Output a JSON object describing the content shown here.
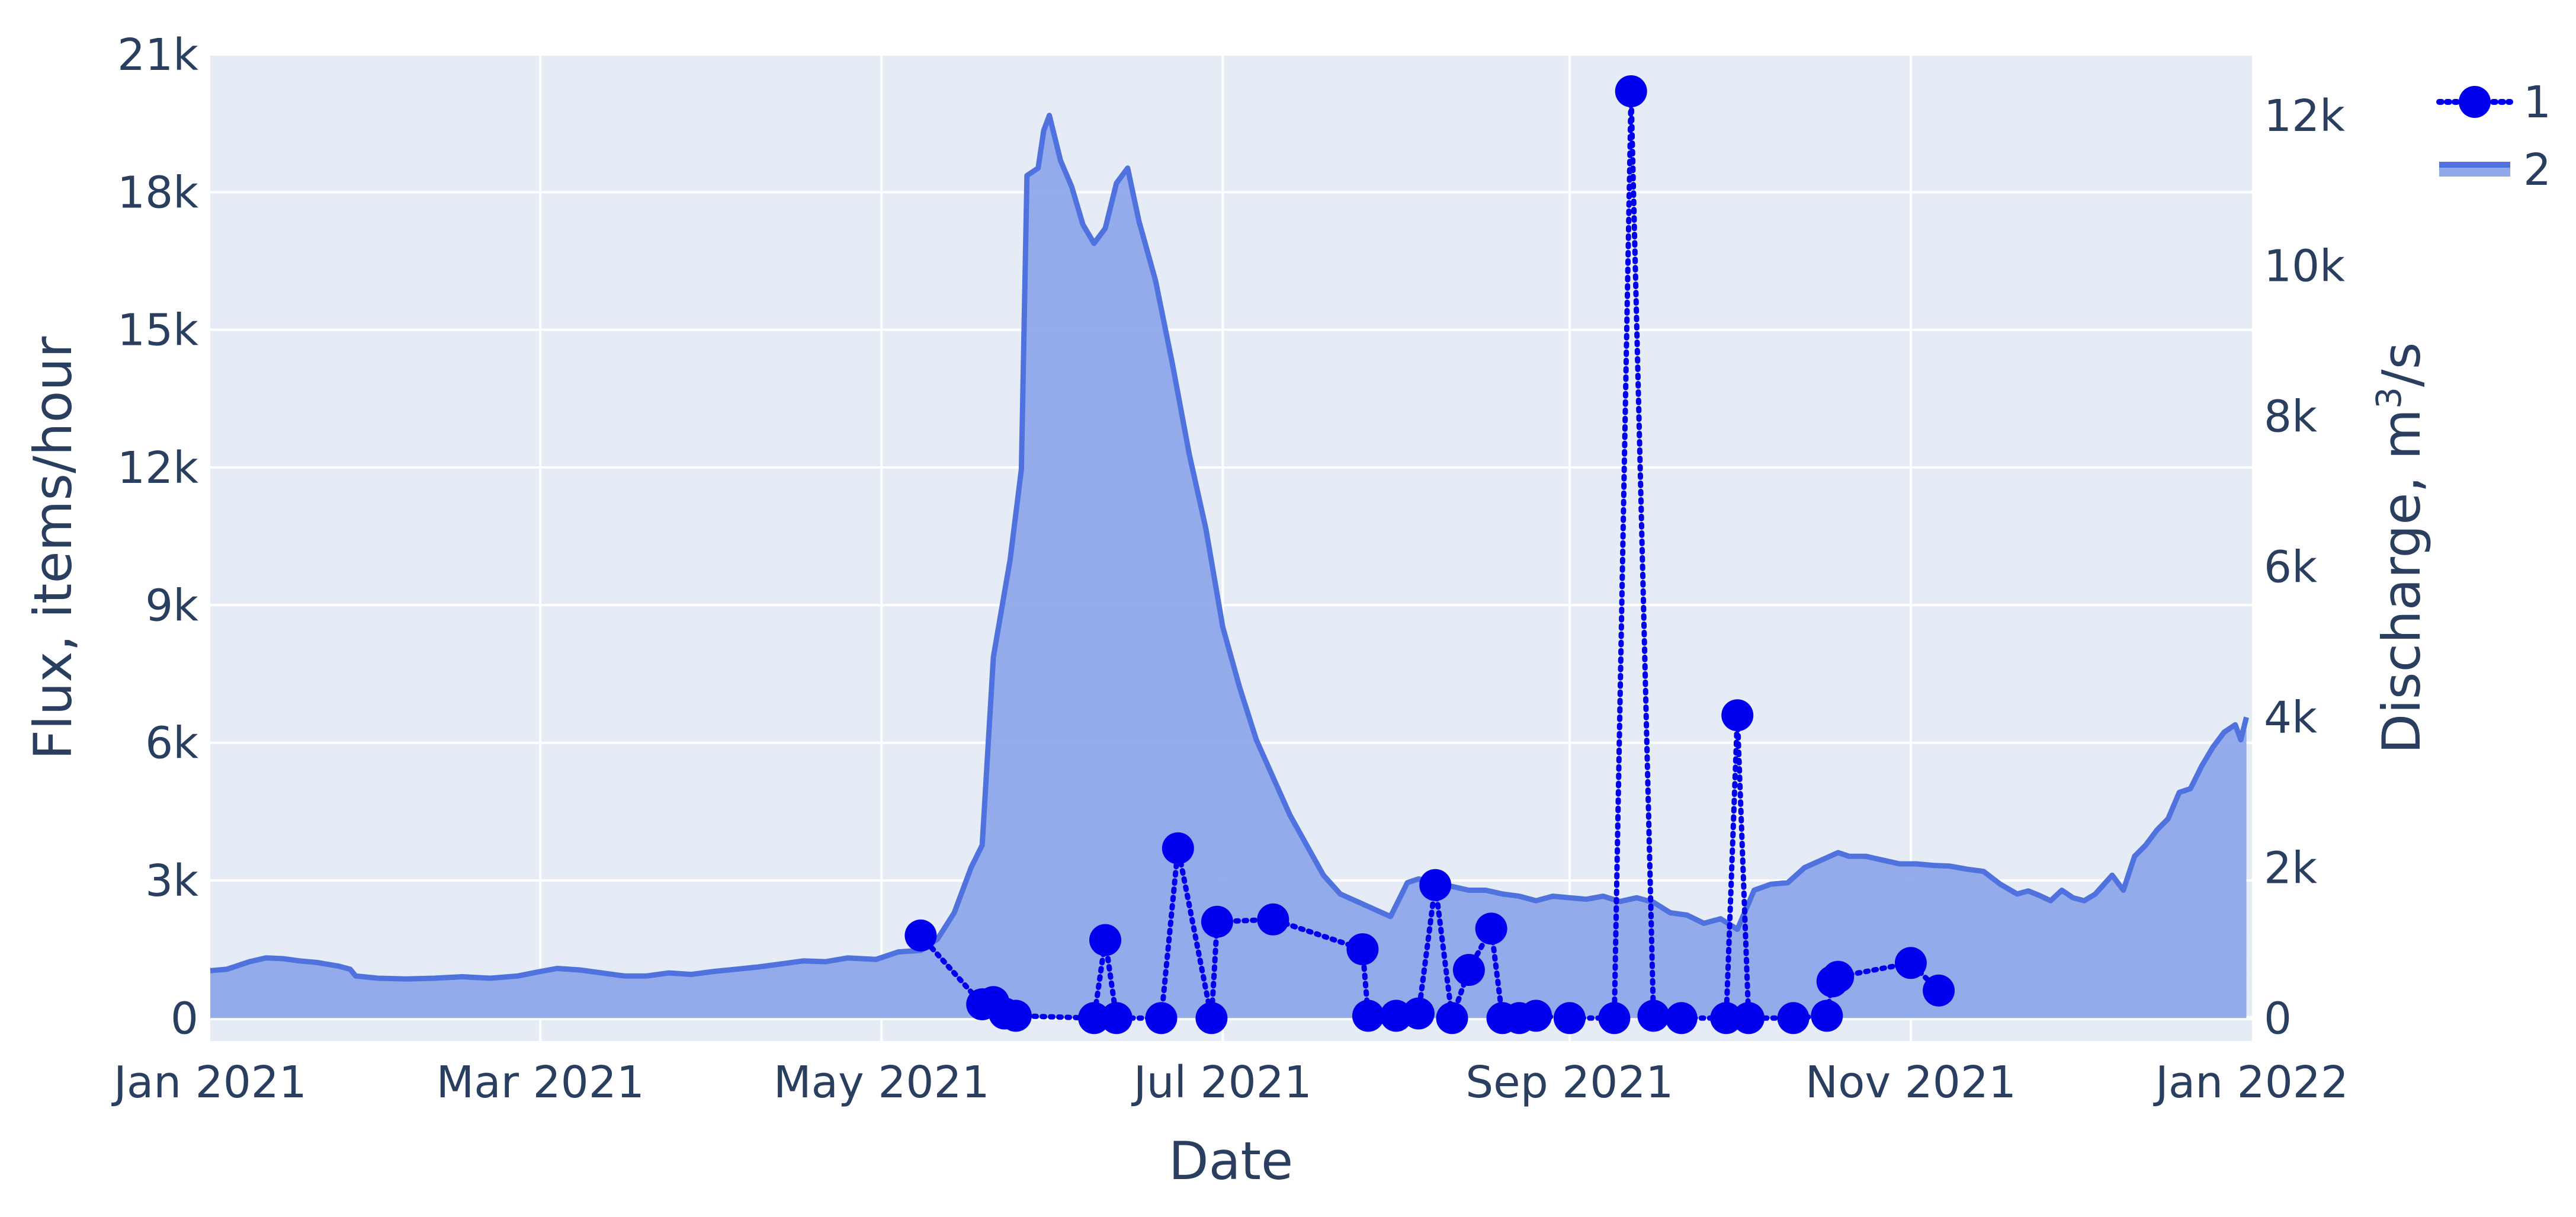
{
  "chart_data": {
    "type": "line",
    "xlabel": "Date",
    "ylabel_left": "Flux, items/hour",
    "ylabel_right_prefix": "Discharge, m",
    "ylabel_right_sup": "3",
    "ylabel_right_suffix": "/s",
    "xlim": [
      "2021-01-01",
      "2022-01-01"
    ],
    "xticks": [
      {
        "date": "2021-01-01",
        "label": "Jan 2021"
      },
      {
        "date": "2021-03-01",
        "label": "Mar 2021"
      },
      {
        "date": "2021-05-01",
        "label": "May 2021"
      },
      {
        "date": "2021-07-01",
        "label": "Jul 2021"
      },
      {
        "date": "2021-09-01",
        "label": "Sep 2021"
      },
      {
        "date": "2021-11-01",
        "label": "Nov 2021"
      },
      {
        "date": "2022-01-01",
        "label": "Jan 2022"
      }
    ],
    "ylim_left": [
      -500,
      21000
    ],
    "yticks_left": [
      {
        "value": 0,
        "label": "0"
      },
      {
        "value": 3000,
        "label": "3k"
      },
      {
        "value": 6000,
        "label": "6k"
      },
      {
        "value": 9000,
        "label": "9k"
      },
      {
        "value": 12000,
        "label": "12k"
      },
      {
        "value": 15000,
        "label": "15k"
      },
      {
        "value": 18000,
        "label": "18k"
      },
      {
        "value": 21000,
        "label": "21k"
      }
    ],
    "ylim_right": [
      -305,
      12810
    ],
    "yticks_right": [
      {
        "value": 0,
        "label": "0"
      },
      {
        "value": 2000,
        "label": "2k"
      },
      {
        "value": 4000,
        "label": "4k"
      },
      {
        "value": 6000,
        "label": "6k"
      },
      {
        "value": 8000,
        "label": "8k"
      },
      {
        "value": 10000,
        "label": "10k"
      },
      {
        "value": 12000,
        "label": "12k"
      }
    ],
    "grid": true,
    "legend_position": "top-right",
    "colors": {
      "plot_bg": "#e5ecf6",
      "grid": "#ffffff",
      "marker": "#0000ee",
      "area_line": "#4f72de",
      "area_fill": "#8fa8ea"
    },
    "series": [
      {
        "name": "1",
        "axis": "left",
        "mode": "lines+markers",
        "line_style": "dotted",
        "points": [
          [
            "2021-05-08",
            1800
          ],
          [
            "2021-05-19",
            300
          ],
          [
            "2021-05-21",
            350
          ],
          [
            "2021-05-23",
            100
          ],
          [
            "2021-05-25",
            50
          ],
          [
            "2021-06-08",
            0
          ],
          [
            "2021-06-10",
            1700
          ],
          [
            "2021-06-12",
            0
          ],
          [
            "2021-06-20",
            0
          ],
          [
            "2021-06-23",
            3700
          ],
          [
            "2021-06-29",
            0
          ],
          [
            "2021-06-30",
            2100
          ],
          [
            "2021-07-10",
            2150
          ],
          [
            "2021-07-26",
            1500
          ],
          [
            "2021-07-27",
            50
          ],
          [
            "2021-08-01",
            50
          ],
          [
            "2021-08-05",
            100
          ],
          [
            "2021-08-08",
            2900
          ],
          [
            "2021-08-11",
            0
          ],
          [
            "2021-08-14",
            1050
          ],
          [
            "2021-08-18",
            1950
          ],
          [
            "2021-08-20",
            0
          ],
          [
            "2021-08-23",
            0
          ],
          [
            "2021-08-26",
            50
          ],
          [
            "2021-09-01",
            0
          ],
          [
            "2021-09-09",
            0
          ],
          [
            "2021-09-12",
            20200
          ],
          [
            "2021-09-16",
            50
          ],
          [
            "2021-09-21",
            0
          ],
          [
            "2021-09-29",
            0
          ],
          [
            "2021-10-01",
            6600
          ],
          [
            "2021-10-03",
            0
          ],
          [
            "2021-10-11",
            0
          ],
          [
            "2021-10-17",
            50
          ],
          [
            "2021-10-18",
            800
          ],
          [
            "2021-10-19",
            900
          ],
          [
            "2021-11-01",
            1200
          ],
          [
            "2021-11-06",
            600
          ]
        ]
      },
      {
        "name": "2",
        "axis": "right",
        "mode": "area",
        "points": [
          [
            "2021-01-01",
            630
          ],
          [
            "2021-01-04",
            650
          ],
          [
            "2021-01-08",
            750
          ],
          [
            "2021-01-11",
            800
          ],
          [
            "2021-01-14",
            790
          ],
          [
            "2021-01-17",
            760
          ],
          [
            "2021-01-20",
            740
          ],
          [
            "2021-01-24",
            690
          ],
          [
            "2021-01-26",
            650
          ],
          [
            "2021-01-27",
            560
          ],
          [
            "2021-01-31",
            530
          ],
          [
            "2021-02-05",
            520
          ],
          [
            "2021-02-10",
            530
          ],
          [
            "2021-02-15",
            550
          ],
          [
            "2021-02-20",
            530
          ],
          [
            "2021-02-25",
            560
          ],
          [
            "2021-03-01",
            620
          ],
          [
            "2021-03-04",
            660
          ],
          [
            "2021-03-08",
            640
          ],
          [
            "2021-03-12",
            600
          ],
          [
            "2021-03-16",
            560
          ],
          [
            "2021-03-20",
            560
          ],
          [
            "2021-03-24",
            600
          ],
          [
            "2021-03-28",
            580
          ],
          [
            "2021-04-01",
            620
          ],
          [
            "2021-04-05",
            650
          ],
          [
            "2021-04-09",
            680
          ],
          [
            "2021-04-13",
            720
          ],
          [
            "2021-04-17",
            760
          ],
          [
            "2021-04-21",
            750
          ],
          [
            "2021-04-25",
            800
          ],
          [
            "2021-04-30",
            780
          ],
          [
            "2021-05-04",
            880
          ],
          [
            "2021-05-08",
            900
          ],
          [
            "2021-05-11",
            1050
          ],
          [
            "2021-05-14",
            1400
          ],
          [
            "2021-05-17",
            2000
          ],
          [
            "2021-05-19",
            2300
          ],
          [
            "2021-05-21",
            4800
          ],
          [
            "2021-05-24",
            6100
          ],
          [
            "2021-05-26",
            7300
          ],
          [
            "2021-05-27",
            11200
          ],
          [
            "2021-05-29",
            11300
          ],
          [
            "2021-05-30",
            11800
          ],
          [
            "2021-05-31",
            12000
          ],
          [
            "2021-06-02",
            11400
          ],
          [
            "2021-06-04",
            11050
          ],
          [
            "2021-06-06",
            10550
          ],
          [
            "2021-06-08",
            10300
          ],
          [
            "2021-06-10",
            10500
          ],
          [
            "2021-06-12",
            11100
          ],
          [
            "2021-06-14",
            11300
          ],
          [
            "2021-06-16",
            10600
          ],
          [
            "2021-06-19",
            9800
          ],
          [
            "2021-06-22",
            8700
          ],
          [
            "2021-06-25",
            7500
          ],
          [
            "2021-06-28",
            6500
          ],
          [
            "2021-07-01",
            5200
          ],
          [
            "2021-07-04",
            4400
          ],
          [
            "2021-07-07",
            3700
          ],
          [
            "2021-07-10",
            3200
          ],
          [
            "2021-07-13",
            2700
          ],
          [
            "2021-07-16",
            2300
          ],
          [
            "2021-07-19",
            1900
          ],
          [
            "2021-07-22",
            1650
          ],
          [
            "2021-07-25",
            1550
          ],
          [
            "2021-07-28",
            1450
          ],
          [
            "2021-07-31",
            1350
          ],
          [
            "2021-08-03",
            1800
          ],
          [
            "2021-08-05",
            1850
          ],
          [
            "2021-08-08",
            1800
          ],
          [
            "2021-08-11",
            1750
          ],
          [
            "2021-08-14",
            1700
          ],
          [
            "2021-08-17",
            1700
          ],
          [
            "2021-08-20",
            1650
          ],
          [
            "2021-08-23",
            1620
          ],
          [
            "2021-08-26",
            1560
          ],
          [
            "2021-08-29",
            1620
          ],
          [
            "2021-09-01",
            1600
          ],
          [
            "2021-09-04",
            1580
          ],
          [
            "2021-09-07",
            1620
          ],
          [
            "2021-09-10",
            1550
          ],
          [
            "2021-09-13",
            1600
          ],
          [
            "2021-09-16",
            1540
          ],
          [
            "2021-09-19",
            1400
          ],
          [
            "2021-09-22",
            1370
          ],
          [
            "2021-09-25",
            1260
          ],
          [
            "2021-09-28",
            1320
          ],
          [
            "2021-10-01",
            1180
          ],
          [
            "2021-10-04",
            1700
          ],
          [
            "2021-10-07",
            1780
          ],
          [
            "2021-10-10",
            1800
          ],
          [
            "2021-10-13",
            2000
          ],
          [
            "2021-10-16",
            2100
          ],
          [
            "2021-10-19",
            2200
          ],
          [
            "2021-10-21",
            2150
          ],
          [
            "2021-10-24",
            2150
          ],
          [
            "2021-10-27",
            2100
          ],
          [
            "2021-10-30",
            2050
          ],
          [
            "2021-11-02",
            2050
          ],
          [
            "2021-11-05",
            2030
          ],
          [
            "2021-11-08",
            2020
          ],
          [
            "2021-11-11",
            1980
          ],
          [
            "2021-11-14",
            1950
          ],
          [
            "2021-11-17",
            1780
          ],
          [
            "2021-11-20",
            1650
          ],
          [
            "2021-11-22",
            1690
          ],
          [
            "2021-11-24",
            1630
          ],
          [
            "2021-11-26",
            1560
          ],
          [
            "2021-11-28",
            1700
          ],
          [
            "2021-11-30",
            1600
          ],
          [
            "2021-12-02",
            1560
          ],
          [
            "2021-12-04",
            1650
          ],
          [
            "2021-12-07",
            1900
          ],
          [
            "2021-12-09",
            1700
          ],
          [
            "2021-12-11",
            2150
          ],
          [
            "2021-12-13",
            2300
          ],
          [
            "2021-12-15",
            2500
          ],
          [
            "2021-12-17",
            2650
          ],
          [
            "2021-12-19",
            3000
          ],
          [
            "2021-12-21",
            3050
          ],
          [
            "2021-12-23",
            3350
          ],
          [
            "2021-12-25",
            3600
          ],
          [
            "2021-12-27",
            3800
          ],
          [
            "2021-12-29",
            3900
          ],
          [
            "2021-12-30",
            3700
          ],
          [
            "2021-12-31",
            4000
          ]
        ]
      }
    ]
  }
}
